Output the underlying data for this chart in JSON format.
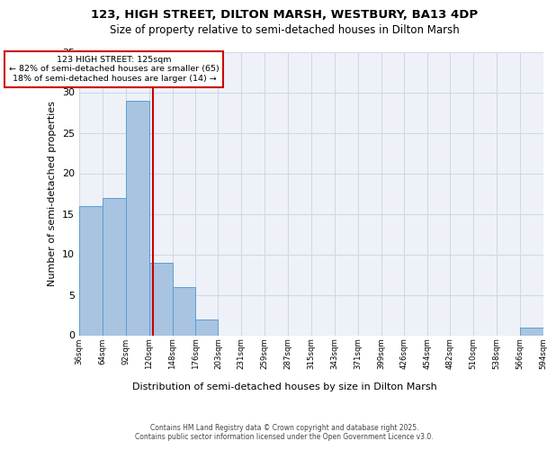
{
  "title1": "123, HIGH STREET, DILTON MARSH, WESTBURY, BA13 4DP",
  "title2": "Size of property relative to semi-detached houses in Dilton Marsh",
  "xlabel": "Distribution of semi-detached houses by size in Dilton Marsh",
  "ylabel": "Number of semi-detached properties",
  "annotation_title": "123 HIGH STREET: 125sqm",
  "annotation_line1": "← 82% of semi-detached houses are smaller (65)",
  "annotation_line2": "18% of semi-detached houses are larger (14) →",
  "footer1": "Contains HM Land Registry data © Crown copyright and database right 2025.",
  "footer2": "Contains public sector information licensed under the Open Government Licence v3.0.",
  "property_size": 125,
  "red_line_x": 125,
  "bin_edges": [
    36,
    64,
    92,
    120,
    148,
    176,
    203,
    231,
    259,
    287,
    315,
    343,
    371,
    399,
    426,
    454,
    482,
    510,
    538,
    566,
    594
  ],
  "bar_values": [
    16,
    17,
    29,
    9,
    6,
    2,
    0,
    0,
    0,
    0,
    0,
    0,
    0,
    0,
    0,
    0,
    0,
    0,
    0,
    1
  ],
  "bar_color": "#a8c4e0",
  "bar_edge_color": "#5a9fd4",
  "grid_color": "#d0d8e8",
  "background_color": "#eef2f8",
  "red_line_color": "#cc0000",
  "annotation_box_color": "#cc0000",
  "ylim": [
    0,
    35
  ],
  "yticks": [
    0,
    5,
    10,
    15,
    20,
    25,
    30,
    35
  ]
}
